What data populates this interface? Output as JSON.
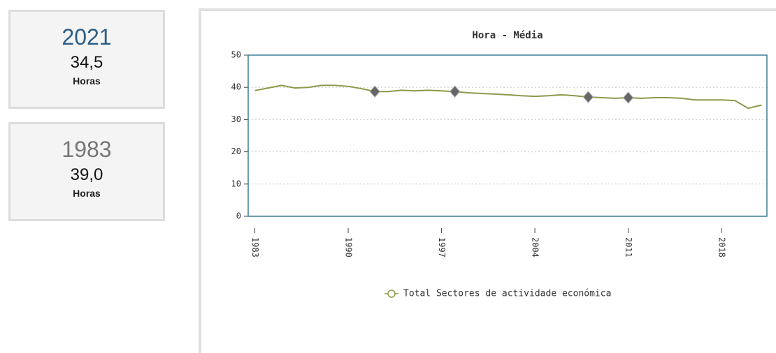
{
  "cards": [
    {
      "year": "2021",
      "value": "34,5",
      "unit": "Horas"
    },
    {
      "year": "1983",
      "value": "39,0",
      "unit": "Horas"
    }
  ],
  "chart_data": {
    "type": "line",
    "title": "Hora - Média",
    "x": [
      1983,
      1984,
      1985,
      1986,
      1987,
      1988,
      1989,
      1990,
      1991,
      1992,
      1993,
      1994,
      1995,
      1996,
      1997,
      1998,
      1999,
      2000,
      2001,
      2002,
      2003,
      2004,
      2005,
      2006,
      2007,
      2008,
      2009,
      2010,
      2011,
      2012,
      2013,
      2014,
      2015,
      2016,
      2017,
      2018,
      2019,
      2020,
      2021
    ],
    "series": [
      {
        "name": "Total Sectores de actividade económica",
        "color": "#8a9a4a",
        "values": [
          39.0,
          39.8,
          40.6,
          39.8,
          40.0,
          40.6,
          40.6,
          40.3,
          39.6,
          38.7,
          38.7,
          39.1,
          38.9,
          39.1,
          38.9,
          38.7,
          38.3,
          38.1,
          37.9,
          37.7,
          37.4,
          37.2,
          37.4,
          37.7,
          37.4,
          37.0,
          36.8,
          36.6,
          36.8,
          36.6,
          36.8,
          36.8,
          36.6,
          36.1,
          36.1,
          36.1,
          35.9,
          33.5,
          34.5
        ]
      }
    ],
    "markers": [
      1992,
      1998,
      2008,
      2011
    ],
    "xlim": [
      1982.5,
      2021.4
    ],
    "xticks": [
      1983,
      1990,
      1997,
      2004,
      2011,
      2018
    ],
    "ylim": [
      0,
      50
    ],
    "yticks": [
      0,
      10,
      20,
      30,
      40,
      50
    ],
    "grid": true
  }
}
